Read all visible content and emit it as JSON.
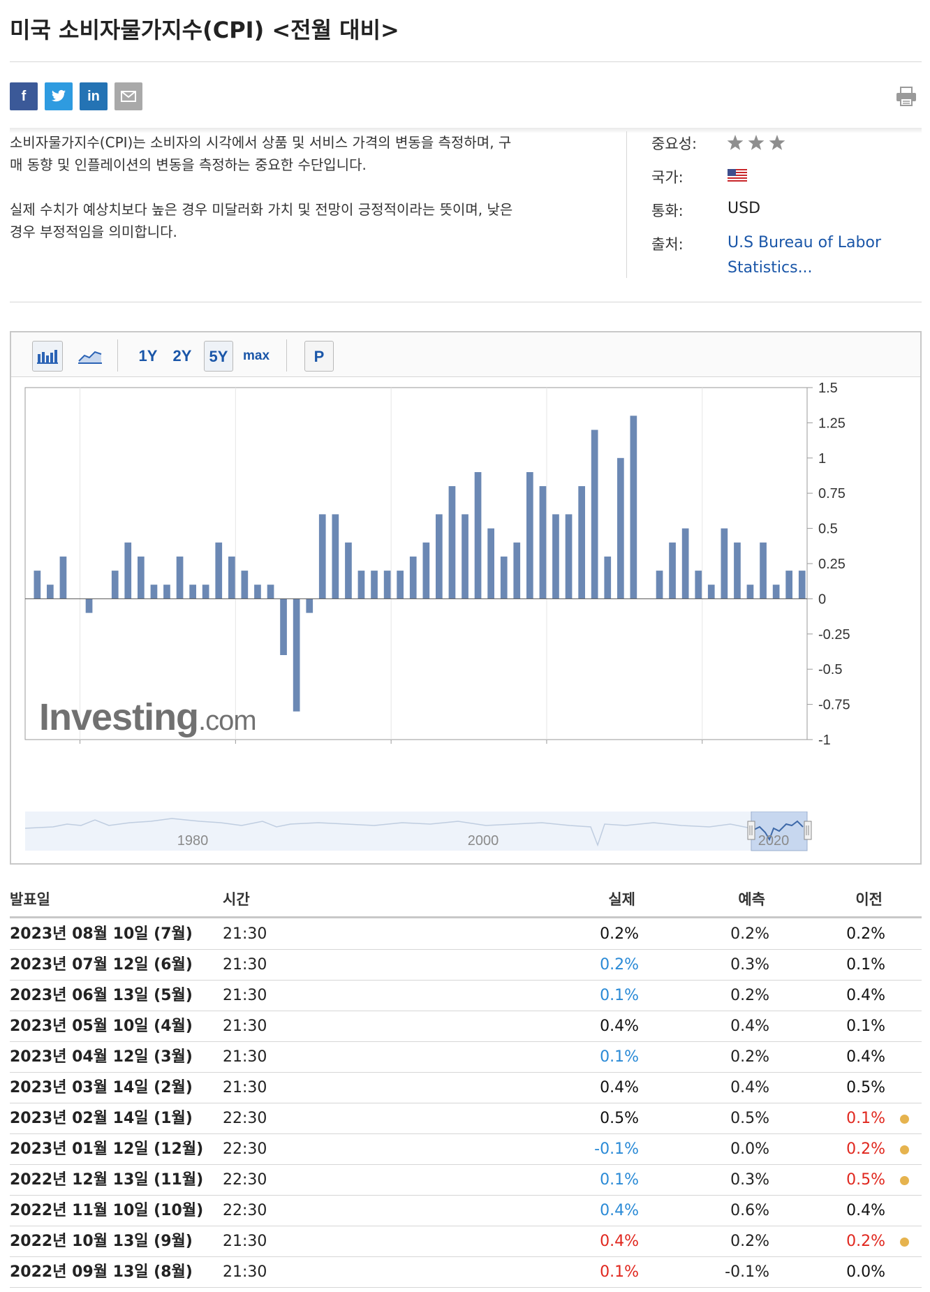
{
  "title": "미국 소비자물가지수(CPI) <전월 대비>",
  "share": {
    "facebook": "f",
    "linkedin": "in",
    "icons": [
      "facebook-icon",
      "twitter-icon",
      "linkedin-icon",
      "email-icon",
      "print-icon"
    ],
    "colors": {
      "facebook": "#3b5998",
      "twitter": "#2e9be0",
      "linkedin": "#2473b4",
      "email": "#a9a9a9"
    }
  },
  "description": {
    "p1_line1": "소비자물가지수(CPI)는 소비자의 시각에서 상품 및 서비스 가격의 변동을 측정하며, 구",
    "p1_line2": "매 동향 및 인플레이션의 변동을 측정하는 중요한 수단입니다.",
    "p2_line1": "실제 수치가 예상치보다 높은 경우 미달러화 가치 및 전망이 긍정적이라는 뜻이며, 낮은",
    "p2_line2": "경우 부정적임을 의미합니다."
  },
  "info": {
    "importance_label": "중요성:",
    "importance_stars": 3,
    "country_label": "국가:",
    "country_flag": "us-flag-icon",
    "currency_label": "통화:",
    "currency_value": "USD",
    "source_label": "출처:",
    "source_line1": "U.S Bureau of Labor",
    "source_line2": "Statistics..."
  },
  "chart_toolbar": {
    "buttons": [
      "1Y",
      "2Y",
      "5Y",
      "max"
    ],
    "selected": "5Y",
    "p_label": "P"
  },
  "chart_data": {
    "type": "bar",
    "x": [
      "2018-08",
      "2018-09",
      "2018-10",
      "2018-11",
      "2018-12",
      "2019-01",
      "2019-02",
      "2019-03",
      "2019-04",
      "2019-05",
      "2019-06",
      "2019-07",
      "2019-08",
      "2019-09",
      "2019-10",
      "2019-11",
      "2019-12",
      "2020-01",
      "2020-02",
      "2020-03",
      "2020-04",
      "2020-05",
      "2020-06",
      "2020-07",
      "2020-08",
      "2020-09",
      "2020-10",
      "2020-11",
      "2020-12",
      "2021-01",
      "2021-02",
      "2021-03",
      "2021-04",
      "2021-05",
      "2021-06",
      "2021-07",
      "2021-08",
      "2021-09",
      "2021-10",
      "2021-11",
      "2021-12",
      "2022-01",
      "2022-02",
      "2022-03",
      "2022-04",
      "2022-05",
      "2022-06",
      "2022-07",
      "2022-08",
      "2022-09",
      "2022-10",
      "2022-11",
      "2022-12",
      "2023-01",
      "2023-02",
      "2023-03",
      "2023-04",
      "2023-05",
      "2023-06",
      "2023-07"
    ],
    "values": [
      0.2,
      0.1,
      0.3,
      0.0,
      -0.1,
      0.0,
      0.2,
      0.4,
      0.3,
      0.1,
      0.1,
      0.3,
      0.1,
      0.1,
      0.4,
      0.3,
      0.2,
      0.1,
      0.1,
      -0.4,
      -0.8,
      -0.1,
      0.6,
      0.6,
      0.4,
      0.2,
      0.2,
      0.2,
      0.2,
      0.3,
      0.4,
      0.6,
      0.8,
      0.6,
      0.9,
      0.5,
      0.3,
      0.4,
      0.9,
      0.8,
      0.6,
      0.6,
      0.8,
      1.2,
      0.3,
      1.0,
      1.3,
      0.0,
      0.2,
      0.4,
      0.5,
      0.2,
      0.1,
      0.5,
      0.4,
      0.1,
      0.4,
      0.1,
      0.2,
      0.2
    ],
    "ylim": [
      -1,
      1.5
    ],
    "yticks": [
      "1.5",
      "1.25",
      "1",
      "0.75",
      "0.5",
      "0.25",
      "0",
      "-0.25",
      "-0.5",
      "-0.75",
      "-1"
    ],
    "xticks": [
      "2019",
      "2020",
      "2021",
      "2022",
      "2023"
    ],
    "navigator_ticks": [
      "1980",
      "2000",
      "2020"
    ],
    "bar_color": "#6b88b4",
    "watermark": "Investing.com",
    "grid": true
  },
  "table": {
    "headers": {
      "date": "발표일",
      "time": "시간",
      "actual": "실제",
      "forecast": "예측",
      "previous": "이전"
    },
    "rows": [
      {
        "date": "2023년 08월 10일 (7월)",
        "time": "21:30",
        "actual": "0.2%",
        "actual_color": "#111111",
        "forecast": "0.2%",
        "previous": "0.2%",
        "previous_color": "#111111",
        "revised": false
      },
      {
        "date": "2023년 07월 12일 (6월)",
        "time": "21:30",
        "actual": "0.2%",
        "actual_color": "#2a8ad6",
        "forecast": "0.3%",
        "previous": "0.1%",
        "previous_color": "#111111",
        "revised": false
      },
      {
        "date": "2023년 06월 13일 (5월)",
        "time": "21:30",
        "actual": "0.1%",
        "actual_color": "#2a8ad6",
        "forecast": "0.2%",
        "previous": "0.4%",
        "previous_color": "#111111",
        "revised": false
      },
      {
        "date": "2023년 05월 10일 (4월)",
        "time": "21:30",
        "actual": "0.4%",
        "actual_color": "#111111",
        "forecast": "0.4%",
        "previous": "0.1%",
        "previous_color": "#111111",
        "revised": false
      },
      {
        "date": "2023년 04월 12일 (3월)",
        "time": "21:30",
        "actual": "0.1%",
        "actual_color": "#2a8ad6",
        "forecast": "0.2%",
        "previous": "0.4%",
        "previous_color": "#111111",
        "revised": false
      },
      {
        "date": "2023년 03월 14일 (2월)",
        "time": "21:30",
        "actual": "0.4%",
        "actual_color": "#111111",
        "forecast": "0.4%",
        "previous": "0.5%",
        "previous_color": "#111111",
        "revised": false
      },
      {
        "date": "2023년 02월 14일 (1월)",
        "time": "22:30",
        "actual": "0.5%",
        "actual_color": "#111111",
        "forecast": "0.5%",
        "previous": "0.1%",
        "previous_color": "#e0271e",
        "revised": true
      },
      {
        "date": "2023년 01월 12일 (12월)",
        "time": "22:30",
        "actual": "-0.1%",
        "actual_color": "#2a8ad6",
        "forecast": "0.0%",
        "previous": "0.2%",
        "previous_color": "#e0271e",
        "revised": true
      },
      {
        "date": "2022년 12월 13일 (11월)",
        "time": "22:30",
        "actual": "0.1%",
        "actual_color": "#2a8ad6",
        "forecast": "0.3%",
        "previous": "0.5%",
        "previous_color": "#e0271e",
        "revised": true
      },
      {
        "date": "2022년 11월 10일 (10월)",
        "time": "22:30",
        "actual": "0.4%",
        "actual_color": "#2a8ad6",
        "forecast": "0.6%",
        "previous": "0.4%",
        "previous_color": "#111111",
        "revised": false
      },
      {
        "date": "2022년 10월 13일 (9월)",
        "time": "21:30",
        "actual": "0.4%",
        "actual_color": "#e0271e",
        "forecast": "0.2%",
        "previous": "0.2%",
        "previous_color": "#e0271e",
        "revised": true
      },
      {
        "date": "2022년 09월 13일 (8월)",
        "time": "21:30",
        "actual": "0.1%",
        "actual_color": "#e0271e",
        "forecast": "-0.1%",
        "previous": "0.0%",
        "previous_color": "#111111",
        "revised": false
      }
    ]
  }
}
